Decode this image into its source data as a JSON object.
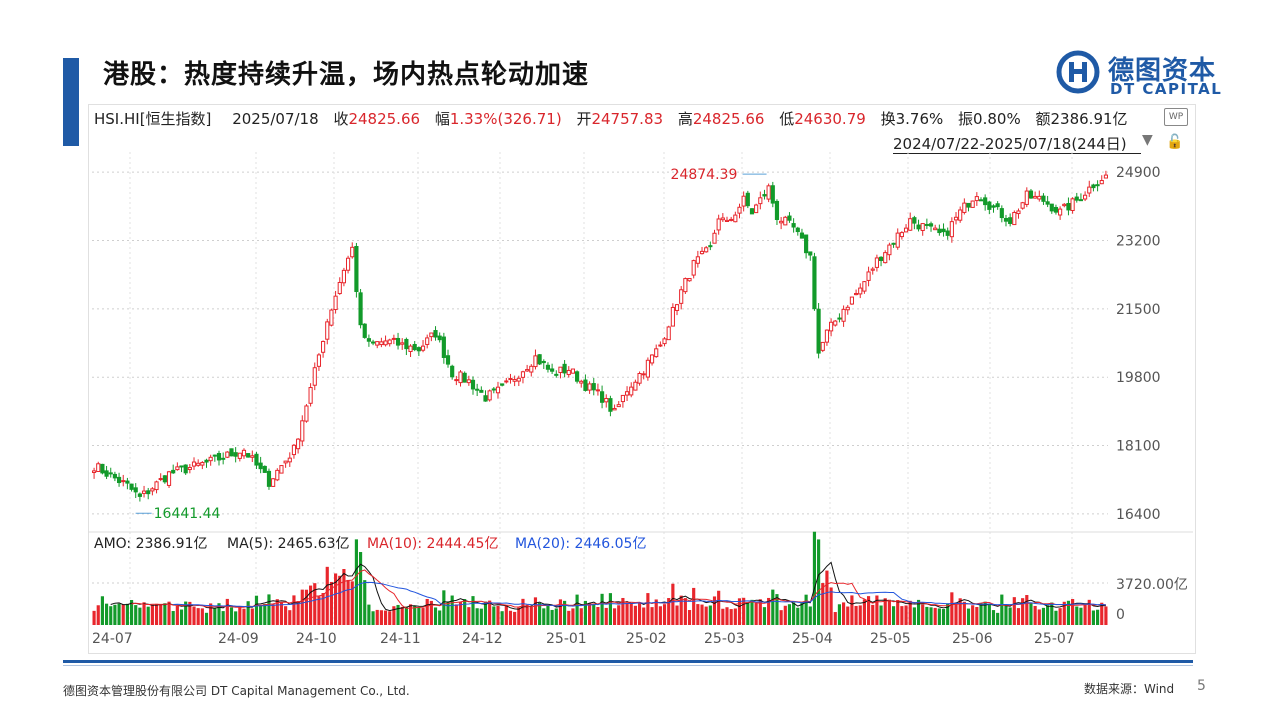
{
  "slide": {
    "title": "港股：热度持续升温，场内热点轮动加速",
    "logo_cn": "德图资本",
    "logo_en": "DT CAPITAL",
    "footer_company": "德图资本管理股份有限公司 DT Capital Management Co., Ltd.",
    "footer_source": "数据来源：Wind",
    "page_number": "5",
    "accent_color": "#1f5aa6"
  },
  "info_bar": {
    "code": "HSI.HI[恒生指数]",
    "date": "2025/07/18",
    "close_label": "收",
    "close": "24825.66",
    "change_label": "幅",
    "change": "1.33%(326.71)",
    "open_label": "开",
    "open": "24757.83",
    "high_label": "高",
    "high": "24825.66",
    "low_label": "低",
    "low": "24630.79",
    "turnover_label": "换",
    "turnover": "3.76%",
    "amplitude_label": "振",
    "amplitude": "0.80%",
    "amount_label": "额",
    "amount": "2386.91亿",
    "range": "2024/07/22-2025/07/18(244日)",
    "wp_icon_text": "WP"
  },
  "amo_legend": {
    "amo": "AMO: 2386.91亿",
    "ma5": "MA(5): 2465.63亿",
    "ma10": "MA(10): 2444.45亿",
    "ma20": "MA(20): 2446.05亿"
  },
  "chart_data": {
    "type": "candlestick",
    "ylim": [
      16000,
      25400
    ],
    "y_ticks": [
      "24900",
      "23200",
      "21500",
      "19800",
      "18100",
      "16400"
    ],
    "x_labels": [
      "24-07",
      "24-09",
      "24-10",
      "24-11",
      "24-12",
      "25-01",
      "25-02",
      "25-03",
      "25-04",
      "25-05",
      "25-06",
      "25-07"
    ],
    "annotations": [
      {
        "text": "24874.39",
        "value": 24874.39,
        "index": 162
      },
      {
        "text": "16441.44",
        "value": 16441.44,
        "index": 10
      }
    ],
    "anchors": [
      [
        0,
        17600
      ],
      [
        8,
        17100
      ],
      [
        11,
        16800
      ],
      [
        18,
        17400
      ],
      [
        28,
        17700
      ],
      [
        36,
        18000
      ],
      [
        42,
        17200
      ],
      [
        48,
        18000
      ],
      [
        52,
        19500
      ],
      [
        56,
        21200
      ],
      [
        60,
        22500
      ],
      [
        62,
        23000
      ],
      [
        64,
        21000
      ],
      [
        66,
        20600
      ],
      [
        70,
        20700
      ],
      [
        78,
        20500
      ],
      [
        82,
        20900
      ],
      [
        86,
        19900
      ],
      [
        90,
        19700
      ],
      [
        94,
        19300
      ],
      [
        98,
        19500
      ],
      [
        102,
        19900
      ],
      [
        106,
        20300
      ],
      [
        110,
        19900
      ],
      [
        114,
        20000
      ],
      [
        118,
        19600
      ],
      [
        122,
        19300
      ],
      [
        125,
        18900
      ],
      [
        128,
        19500
      ],
      [
        132,
        20000
      ],
      [
        136,
        20600
      ],
      [
        140,
        21700
      ],
      [
        144,
        22600
      ],
      [
        148,
        23000
      ],
      [
        150,
        23800
      ],
      [
        152,
        23600
      ],
      [
        156,
        24200
      ],
      [
        158,
        23900
      ],
      [
        160,
        24200
      ],
      [
        162,
        24500
      ],
      [
        164,
        23800
      ],
      [
        168,
        23500
      ],
      [
        172,
        22800
      ],
      [
        174,
        20400
      ],
      [
        176,
        20900
      ],
      [
        180,
        21500
      ],
      [
        184,
        22000
      ],
      [
        188,
        22700
      ],
      [
        192,
        23200
      ],
      [
        196,
        23700
      ],
      [
        200,
        23500
      ],
      [
        204,
        23300
      ],
      [
        208,
        23900
      ],
      [
        212,
        24400
      ],
      [
        216,
        24000
      ],
      [
        220,
        23700
      ],
      [
        224,
        24300
      ],
      [
        228,
        24200
      ],
      [
        232,
        23900
      ],
      [
        236,
        24200
      ],
      [
        240,
        24600
      ],
      [
        243,
        24825.66
      ]
    ],
    "amo_ylim": [
      0,
      7500
    ],
    "amo_ticks": [
      "3720.00亿",
      "0"
    ],
    "colors": {
      "up": "#e8262c",
      "down": "#129a2a",
      "ma5": "#111111",
      "ma10": "#e8262c",
      "ma20": "#2255dd"
    }
  }
}
